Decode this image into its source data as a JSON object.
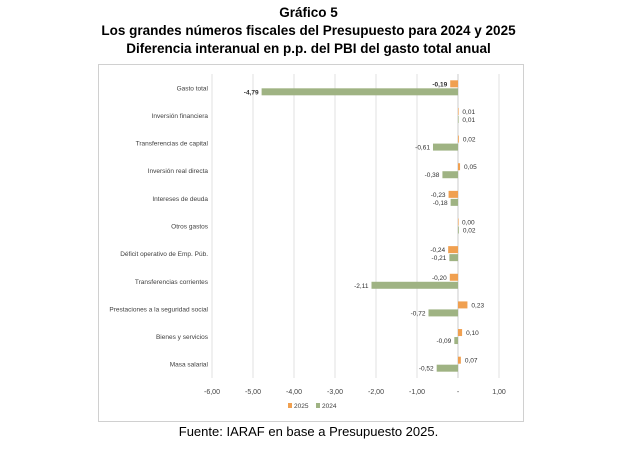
{
  "header": {
    "title": "Gráfico 5",
    "subtitle1": "Los grandes números fiscales del Presupuesto para 2024 y 2025",
    "subtitle2": "Diferencia interanual en p.p. del PBI del gasto total anual"
  },
  "footer": {
    "source": "Fuente: IARAF en base a Presupuesto 2025."
  },
  "colors": {
    "2025": "#f0a050",
    "2024": "#9fb383",
    "gridline": "#d9d9d9",
    "zero_line": "#bfbfbf"
  },
  "chart_data": {
    "type": "bar",
    "orientation": "horizontal",
    "categories": [
      "Gasto total",
      "Inversión financiera",
      "Transferencias de capital",
      "Inversión real directa",
      "Intereses de deuda",
      "Otros gastos",
      "Déficit operativo de Emp. Púb.",
      "Transferencias corrientes",
      "Prestaciones a la seguridad social",
      "Bienes y servicios",
      "Masa salarial"
    ],
    "series": [
      {
        "name": "2025",
        "values": [
          -0.19,
          0.01,
          0.02,
          0.05,
          -0.23,
          0.0,
          -0.24,
          -0.2,
          0.23,
          0.1,
          0.07
        ],
        "labels": [
          "-0,19",
          "0,01",
          "0,02",
          "0,05",
          "-0,23",
          "0,00",
          "-0,24",
          "-0,20",
          "0,23",
          "0,10",
          "0,07"
        ]
      },
      {
        "name": "2024",
        "values": [
          -4.79,
          0.01,
          -0.61,
          -0.38,
          -0.18,
          0.02,
          -0.21,
          -2.11,
          -0.72,
          -0.09,
          -0.52
        ],
        "labels": [
          "-4,79",
          "0,01",
          "-0,61",
          "-0,38",
          "-0,18",
          "0,02",
          "-0,21",
          "-2,11",
          "-0,72",
          "-0,09",
          "-0,52"
        ]
      }
    ],
    "bold_labels": {
      "category": "Gasto total"
    },
    "xlim": [
      -6,
      1
    ],
    "xticks": [
      -6,
      -5,
      -4,
      -3,
      -2,
      -1,
      0,
      1
    ],
    "xtick_labels": [
      "-6,00",
      "-5,00",
      "-4,00",
      "-3,00",
      "-2,00",
      "-1,00",
      "-",
      "1,00"
    ],
    "grid": true,
    "legend_position": "bottom",
    "legend": [
      "2025",
      "2024"
    ]
  }
}
